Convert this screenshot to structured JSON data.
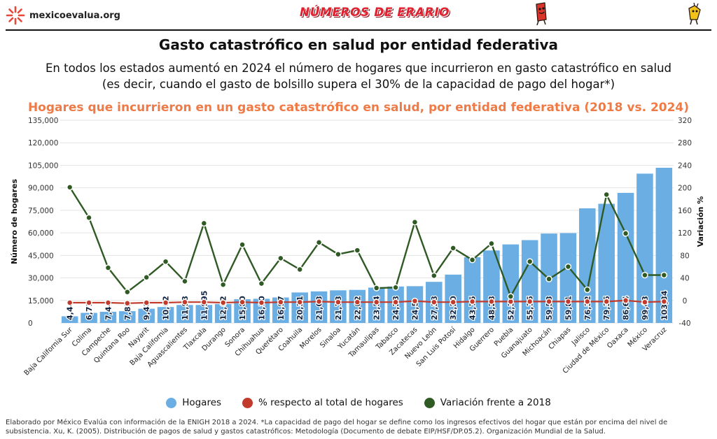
{
  "header": {
    "brand": "mexicoevalua.org",
    "logo_text": "NÚMEROS DE ERARIO"
  },
  "title": "Gasto catastrófico en salud por entidad federativa",
  "subtitle": "En todos los estados aumentó en 2024 el número de hogares que incurrieron en gasto catastrófico en salud (es decir, cuando el gasto de bolsillo supera el 30% de la capacidad de pago del hogar*)",
  "colors": {
    "bars": "#6aaee3",
    "pct_line": "#c13a2c",
    "var_line": "#2f5a24",
    "chart_title": "#f07a45"
  },
  "chart_data": {
    "type": "bar",
    "title": "Hogares que incurrieron en un gasto catastrófico en salud, por entidad federativa (2018 vs. 2024)",
    "ylabel": "Número de hogares",
    "y2label": "Variación %",
    "ylim": [
      0,
      135000
    ],
    "y2lim": [
      -40,
      320
    ],
    "yticks": [
      "135,000",
      "120,000",
      "105,000",
      "90,000",
      "75,000",
      "60,000",
      "45,000",
      "30,000",
      "15,000",
      "0"
    ],
    "y2ticks": [
      "320",
      "280",
      "240",
      "200",
      "160",
      "120",
      "80",
      "40",
      "0",
      "-40"
    ],
    "legend_position": "bottom",
    "categories": [
      "Baja California Sur",
      "Colima",
      "Campeche",
      "Quintana Roo",
      "Nayarit",
      "Baja California",
      "Aguascalientes",
      "Tlaxcala",
      "Durango",
      "Sonora",
      "Chihuahua",
      "Querétaro",
      "Coahuila",
      "Morelos",
      "Sinaloa",
      "Yucatán",
      "Tamaulipas",
      "Tabasco",
      "Zacatecas",
      "Nuevo León",
      "San Luis Potosí",
      "Hidalgo",
      "Guerrero",
      "Puebla",
      "Guanajuato",
      "Michoacán",
      "Chiapas",
      "Jalisco",
      "Ciudad de México",
      "Oaxaca",
      "México",
      "Veracruz"
    ],
    "bar_labels": [
      "4,44",
      "6,71",
      "7,44",
      "7,85",
      "9,48",
      "10,62",
      "11,98",
      "11,995",
      "12,62",
      "15,80",
      "16,10",
      "16,97",
      "20,31",
      "21,03",
      "21,73",
      "22,02",
      "23,54",
      "24,28",
      "24,5",
      "27,38",
      "32,20",
      "43,75",
      "48,28",
      "52,3",
      "55,16",
      "59,53",
      "59,81",
      "76,32",
      "79,36",
      "86,64",
      "99,43",
      "103,34"
    ],
    "series": [
      {
        "name": "Hogares",
        "type": "bar",
        "axis": "left",
        "values": [
          4440,
          6710,
          7440,
          7850,
          9480,
          10620,
          11980,
          11995,
          12620,
          15800,
          16100,
          16970,
          20310,
          21030,
          21730,
          22020,
          23540,
          24280,
          24500,
          27380,
          32200,
          43750,
          48280,
          52300,
          55160,
          59530,
          59810,
          76320,
          79360,
          86640,
          99430,
          103340
        ]
      },
      {
        "name": "% respecto al total de hogares",
        "type": "line",
        "axis": "right",
        "values": [
          -4,
          -4,
          -4,
          -5,
          -4,
          -4,
          -3,
          -3,
          -4,
          -3,
          -4,
          -3,
          -3,
          -2,
          -3,
          -3,
          -3,
          -3,
          -1,
          -3,
          -3,
          -2,
          -2,
          -2,
          -2,
          -2,
          -2,
          -2,
          -2,
          0,
          -3,
          -2
        ]
      },
      {
        "name": "Variación frente a 2018",
        "type": "line",
        "axis": "right",
        "values": [
          201,
          147,
          58,
          15,
          41,
          69,
          34,
          137,
          28,
          99,
          30,
          75,
          55,
          103,
          82,
          89,
          22,
          23,
          139,
          44,
          93,
          72,
          101,
          7,
          69,
          38,
          60,
          19,
          188,
          119,
          45,
          45
        ]
      }
    ]
  },
  "footer": "Elaborado por México Evalúa con información de la ENIGH 2018 a 2024. *La capacidad de pago del hogar se define como los ingresos efectivos del hogar que están por encima del nivel de subsistencia. Xu, K. (2005). Distribución de pagos de salud y gastos catastróficos: Metodología (Documento de debate EIP/HSF/DP.05.2). Organización Mundial de la Salud."
}
